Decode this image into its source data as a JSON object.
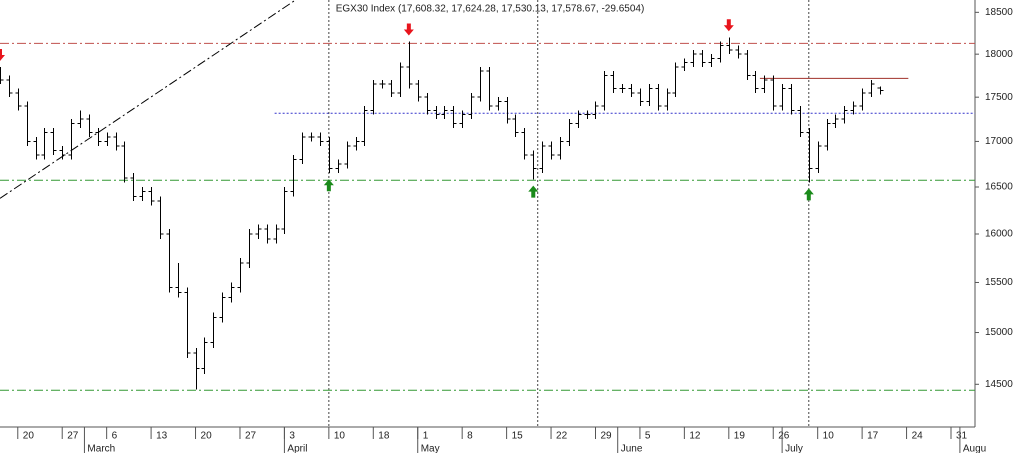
{
  "chart_data": {
    "type": "ohlc",
    "title": "EGX30 Index (17,608.32, 17,624.28, 17,530.13, 17,578.67, -29.6504)",
    "log_scale": true,
    "color": "#000000",
    "ylim": [
      14100,
      18650
    ],
    "yticks": [
      14500,
      15000,
      15500,
      16000,
      16500,
      17000,
      17500,
      18000,
      18500
    ],
    "xlim": [
      -2,
      107.7
    ],
    "xticks": [
      {
        "value": 0,
        "label": "20"
      },
      {
        "value": 5,
        "label": "27"
      },
      {
        "value": 10,
        "label": "6"
      },
      {
        "value": 15,
        "label": "13"
      },
      {
        "value": 20,
        "label": "20"
      },
      {
        "value": 25,
        "label": "27"
      },
      {
        "value": 30,
        "label": "3"
      },
      {
        "value": 35,
        "label": "10"
      },
      {
        "value": 40,
        "label": "18"
      },
      {
        "value": 45,
        "label": "1"
      },
      {
        "value": 50,
        "label": "8"
      },
      {
        "value": 55,
        "label": "15"
      },
      {
        "value": 60,
        "label": "22"
      },
      {
        "value": 65,
        "label": "29"
      },
      {
        "value": 70,
        "label": "5"
      },
      {
        "value": 75,
        "label": "12"
      },
      {
        "value": 80,
        "label": "19"
      },
      {
        "value": 85,
        "label": "26"
      },
      {
        "value": 90,
        "label": "10"
      },
      {
        "value": 95,
        "label": "17"
      },
      {
        "value": 100,
        "label": "24"
      },
      {
        "value": 105,
        "label": "31"
      }
    ],
    "month_ticks": [
      {
        "value": 7.5,
        "label": "March"
      },
      {
        "value": 30,
        "label": "April"
      },
      {
        "value": 45,
        "label": "May"
      },
      {
        "value": 67.5,
        "label": "June"
      },
      {
        "value": 86,
        "label": "July"
      },
      {
        "value": 106,
        "label": "Augu"
      }
    ],
    "x": [
      -2,
      -1,
      0,
      1,
      2,
      3,
      4,
      5,
      6,
      7,
      8,
      9,
      10,
      11,
      12,
      13,
      14,
      15,
      16,
      17,
      18,
      19,
      20,
      21,
      22,
      23,
      24,
      25,
      26,
      27,
      28,
      29,
      30,
      31,
      32,
      33,
      34,
      35,
      36,
      37,
      38,
      39,
      40,
      41,
      42,
      43,
      44,
      45,
      46,
      47,
      48,
      49,
      50,
      51,
      52,
      53,
      54,
      55,
      56,
      57,
      58,
      59,
      60,
      61,
      62,
      63,
      64,
      65,
      66,
      67,
      68,
      69,
      70,
      71,
      72,
      73,
      74,
      75,
      76,
      77,
      78,
      79,
      80,
      81,
      82,
      83,
      84,
      85,
      86,
      87,
      88,
      89,
      90,
      91,
      92,
      93,
      94,
      95,
      96,
      97
    ],
    "open": [
      17800,
      17700,
      17550,
      17400,
      17000,
      16850,
      17100,
      16900,
      16850,
      17200,
      17250,
      17100,
      17000,
      17050,
      16950,
      16600,
      16400,
      16450,
      16350,
      16000,
      15450,
      15400,
      14800,
      14650,
      14900,
      15150,
      15350,
      15450,
      15700,
      16000,
      16050,
      15950,
      16050,
      16450,
      16800,
      17050,
      17050,
      17000,
      16700,
      16750,
      16950,
      17000,
      17350,
      17650,
      17650,
      17550,
      17850,
      17650,
      17500,
      17350,
      17300,
      17350,
      17200,
      17300,
      17500,
      17800,
      17400,
      17450,
      17250,
      17100,
      16850,
      16700,
      16950,
      16850,
      17000,
      17200,
      17300,
      17300,
      17400,
      17750,
      17600,
      17600,
      17550,
      17450,
      17600,
      17400,
      17550,
      17850,
      17900,
      18000,
      17900,
      17950,
      18100,
      18050,
      18000,
      17750,
      17600,
      17700,
      17400,
      17600,
      17350,
      17100,
      16700,
      16950,
      17200,
      17250,
      17350,
      17400,
      17550,
      17608.32
    ],
    "high": [
      17850,
      17750,
      17600,
      17450,
      17050,
      17150,
      17150,
      16950,
      17250,
      17350,
      17300,
      17150,
      17100,
      17100,
      17000,
      16650,
      16500,
      16500,
      16400,
      16050,
      15700,
      15450,
      14850,
      14950,
      15200,
      15400,
      15500,
      15750,
      16050,
      16100,
      16100,
      16100,
      16500,
      16850,
      17100,
      17100,
      17100,
      17050,
      16800,
      17000,
      17050,
      17400,
      17700,
      17700,
      17700,
      17900,
      18150,
      17700,
      17550,
      17400,
      17400,
      17400,
      17350,
      17550,
      17850,
      17850,
      17500,
      17500,
      17300,
      17150,
      16900,
      17000,
      17000,
      17050,
      17250,
      17350,
      17350,
      17450,
      17800,
      17800,
      17650,
      17650,
      17600,
      17650,
      17650,
      17600,
      17900,
      17950,
      18050,
      18050,
      18000,
      18150,
      18200,
      18100,
      18050,
      17800,
      17750,
      17750,
      17650,
      17650,
      17400,
      17150,
      17000,
      17250,
      17300,
      17400,
      17450,
      17600,
      17700,
      17624.28
    ],
    "low": [
      17650,
      17500,
      17350,
      16950,
      16800,
      16800,
      16850,
      16800,
      16800,
      17150,
      17050,
      16950,
      16950,
      16900,
      16550,
      16350,
      16350,
      16300,
      15950,
      15400,
      15350,
      14750,
      14450,
      14600,
      14850,
      15100,
      15300,
      15400,
      15650,
      15950,
      15900,
      15900,
      16000,
      16400,
      16750,
      17000,
      16950,
      16650,
      16650,
      16700,
      16900,
      16950,
      17300,
      17600,
      17500,
      17500,
      17600,
      17450,
      17300,
      17250,
      17250,
      17150,
      17150,
      17250,
      17450,
      17350,
      17350,
      17200,
      17050,
      16800,
      16580,
      16650,
      16800,
      16800,
      16950,
      17150,
      17250,
      17250,
      17350,
      17550,
      17550,
      17500,
      17400,
      17400,
      17350,
      17350,
      17500,
      17800,
      17850,
      17850,
      17850,
      17900,
      18000,
      17950,
      17700,
      17550,
      17550,
      17350,
      17350,
      17300,
      17050,
      16550,
      16650,
      16900,
      17150,
      17200,
      17300,
      17350,
      17500,
      17530.13
    ],
    "close": [
      17700,
      17550,
      17400,
      17000,
      16850,
      17100,
      16900,
      16850,
      17200,
      17250,
      17100,
      17000,
      17050,
      16950,
      16600,
      16400,
      16450,
      16350,
      16000,
      15450,
      15400,
      14800,
      14650,
      14900,
      15150,
      15350,
      15450,
      15700,
      16000,
      16050,
      15950,
      16050,
      16450,
      16800,
      17050,
      17050,
      17000,
      16700,
      16750,
      16950,
      17000,
      17350,
      17650,
      17650,
      17550,
      17850,
      17650,
      17500,
      17350,
      17300,
      17350,
      17200,
      17300,
      17500,
      17800,
      17400,
      17450,
      17250,
      17100,
      16850,
      16700,
      16950,
      16850,
      17000,
      17200,
      17300,
      17300,
      17400,
      17750,
      17600,
      17600,
      17550,
      17450,
      17600,
      17400,
      17550,
      17850,
      17900,
      18000,
      17900,
      17950,
      18100,
      18050,
      18000,
      17750,
      17600,
      17700,
      17400,
      17600,
      17350,
      17100,
      16700,
      16950,
      17200,
      17250,
      17350,
      17400,
      17550,
      17650,
      17578.67
    ],
    "hlines": [
      {
        "value": 18128,
        "color": "#c0504d",
        "style": "dashdot"
      },
      {
        "value": 16573,
        "color": "#339933",
        "style": "dashdot"
      },
      {
        "value": 14443,
        "color": "#339933",
        "style": "dashdot"
      },
      {
        "value": 17316,
        "color": "#3333cc",
        "style": "dotted",
        "from": 28.9
      },
      {
        "value": 17717,
        "color": "#a0302a",
        "style": "solid",
        "from": 83.5,
        "to": 100.2
      }
    ],
    "vlines": [
      35,
      58.5,
      89
    ],
    "trendline": {
      "x": [
        -2,
        31.2
      ],
      "y": [
        16378,
        18646
      ],
      "color": "#000000"
    },
    "markers": [
      {
        "x": -2,
        "direction": "down",
        "color": "#e8141c"
      },
      {
        "x": 44,
        "direction": "down",
        "color": "#e8141c"
      },
      {
        "x": 80,
        "direction": "down",
        "color": "#e8141c"
      },
      {
        "x": 35,
        "direction": "up",
        "color": "#1a8a1a"
      },
      {
        "x": 58,
        "direction": "up",
        "color": "#1a8a1a"
      },
      {
        "x": 89,
        "direction": "up",
        "color": "#1a8a1a"
      }
    ]
  }
}
